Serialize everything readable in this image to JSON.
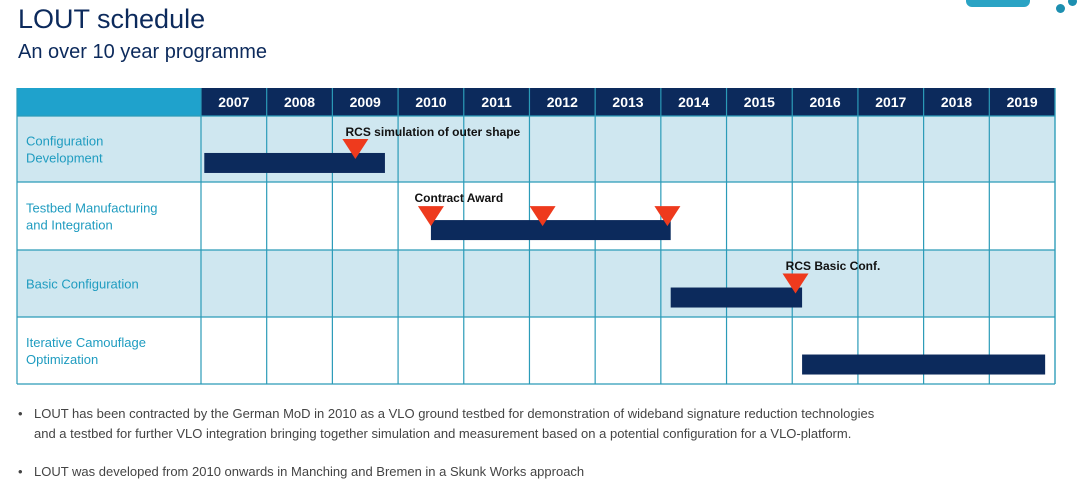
{
  "header": {
    "title": "LOUT schedule",
    "subtitle": "An over 10 year programme"
  },
  "colors": {
    "header_bg": "#0c2a5c",
    "header_label_bg": "#1fa2cc",
    "row_shaded": "#cfe7f0",
    "grid": "#2b9bb8",
    "bar": "#0c2a5c",
    "milestone": "#ee3a1d",
    "row_label": "#1f9cc0"
  },
  "chart_data": {
    "type": "gantt",
    "categories": [
      "2007",
      "2008",
      "2009",
      "2010",
      "2011",
      "2012",
      "2013",
      "2014",
      "2015",
      "2016",
      "2017",
      "2018",
      "2019"
    ],
    "xlim": [
      2007,
      2020
    ],
    "rows": [
      {
        "label": [
          "Configuration",
          "Development"
        ],
        "bars": [
          [
            2007.05,
            2009.8
          ]
        ],
        "milestones": [
          2009.35
        ],
        "annotation": {
          "text": "RCS simulation of outer shape",
          "x": 2009.2
        }
      },
      {
        "label": [
          "Testbed Manufacturing",
          "and Integration"
        ],
        "bars": [
          [
            2010.5,
            2014.15
          ]
        ],
        "milestones": [
          2010.5,
          2012.2,
          2014.1
        ],
        "annotation": {
          "text": "Contract Award",
          "x": 2010.25
        }
      },
      {
        "label": [
          "Basic Configuration"
        ],
        "bars": [
          [
            2014.15,
            2016.15
          ]
        ],
        "milestones": [
          2016.05
        ],
        "annotation": {
          "text": "RCS Basic Conf.",
          "x": 2015.9
        }
      },
      {
        "label": [
          "Iterative Camouflage",
          "Optimization"
        ],
        "bars": [
          [
            2016.15,
            2019.85
          ]
        ],
        "milestones": [],
        "annotation": null
      }
    ]
  },
  "bullets": [
    {
      "lines": [
        "LOUT has been contracted by the German MoD in 2010 as a VLO ground testbed for demonstration of wideband signature reduction technologies",
        "and a testbed for further VLO integration bringing together simulation and measurement based on a potential configuration for a VLO-platform."
      ]
    },
    {
      "lines": [
        "LOUT was developed from 2010 onwards in Manching and Bremen in a Skunk Works approach"
      ]
    }
  ]
}
